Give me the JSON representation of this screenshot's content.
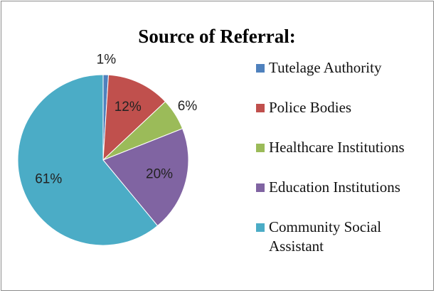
{
  "chart_data": {
    "type": "pie",
    "title": "Source of Referral:",
    "categories": [
      "Tutelage Authority",
      "Police Bodies",
      "Healthcare Institutions",
      "Education Institutions",
      "Community Social Assistant"
    ],
    "values": [
      1,
      12,
      6,
      20,
      61
    ],
    "value_labels": [
      "1%",
      "12%",
      "6%",
      "20%",
      "61%"
    ],
    "colors": [
      "#4f81bd",
      "#c0504d",
      "#9bbb59",
      "#8064a2",
      "#4bacc6"
    ],
    "legend": "right"
  }
}
